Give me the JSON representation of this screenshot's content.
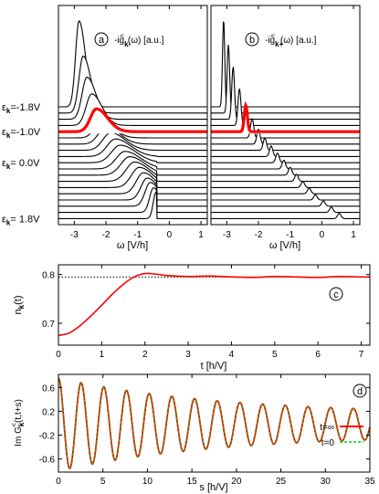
{
  "chart_data": [
    {
      "panel": "a",
      "type": "line",
      "subtitle": "-ig",
      "subtitle_sup": "<",
      "subtitle_sub": "k-",
      "subtitle_suffix": "(ω) [a.u.]",
      "xlabel": "ω [V/h]",
      "xlim": [
        -3.5,
        1.2
      ],
      "xticks": [
        -3,
        -2,
        -1,
        0,
        1
      ],
      "ylabels": [
        {
          "eps": "ε",
          "sub": "k",
          "text": "=-1.8V",
          "curve_index": 0
        },
        {
          "eps": "ε",
          "sub": "k",
          "text": "=-1.0V",
          "curve_index": 4
        },
        {
          "eps": "ε",
          "sub": "k",
          "text": "= 0.0V",
          "curve_index": 9
        },
        {
          "eps": "ε",
          "sub": "k",
          "text": "= 1.8V",
          "curve_index": 18
        }
      ],
      "highlight_index": 4,
      "highlight_color": "#ff0000",
      "edge": -0.4,
      "curves": [
        {
          "eps": -1.8,
          "peak": -2.85,
          "height": 0.98,
          "width": 0.2
        },
        {
          "eps": -1.6,
          "peak": -2.72,
          "height": 0.65,
          "width": 0.24
        },
        {
          "eps": -1.4,
          "peak": -2.6,
          "height": 0.48,
          "width": 0.28
        },
        {
          "eps": -1.2,
          "peak": -2.45,
          "height": 0.36,
          "width": 0.32
        },
        {
          "eps": -1.0,
          "peak": -2.3,
          "height": 0.26,
          "width": 0.35
        },
        {
          "eps": -0.8,
          "peak": -2.15,
          "height": 0.2,
          "width": 0.38
        },
        {
          "eps": -0.6,
          "peak": -2.0,
          "height": 0.2,
          "width": 0.42
        },
        {
          "eps": -0.4,
          "peak": -1.85,
          "height": 0.2,
          "width": 0.45
        },
        {
          "eps": -0.2,
          "peak": -1.7,
          "height": 0.2,
          "width": 0.48
        },
        {
          "eps": 0.0,
          "peak": -1.55,
          "height": 0.2,
          "width": 0.5
        },
        {
          "eps": 0.2,
          "peak": -1.4,
          "height": 0.2,
          "width": 0.5
        },
        {
          "eps": 0.4,
          "peak": -1.25,
          "height": 0.21,
          "width": 0.5
        },
        {
          "eps": 0.6,
          "peak": -1.1,
          "height": 0.22,
          "width": 0.48
        },
        {
          "eps": 0.8,
          "peak": -0.95,
          "height": 0.23,
          "width": 0.45
        },
        {
          "eps": 1.0,
          "peak": -0.82,
          "height": 0.24,
          "width": 0.4
        },
        {
          "eps": 1.2,
          "peak": -0.7,
          "height": 0.25,
          "width": 0.35
        },
        {
          "eps": 1.4,
          "peak": -0.6,
          "height": 0.27,
          "width": 0.3
        },
        {
          "eps": 1.6,
          "peak": -0.5,
          "height": 0.28,
          "width": 0.22
        },
        {
          "eps": 1.8,
          "peak": -0.42,
          "height": 0.3,
          "width": 0.16
        }
      ]
    },
    {
      "panel": "b",
      "type": "line",
      "subtitle": "-ig",
      "subtitle_sup": "<",
      "subtitle_sub": "k+",
      "subtitle_suffix": "(ω) [a.u.]",
      "xlabel": "ω [V/h]",
      "xlim": [
        -3.5,
        1.2
      ],
      "xticks": [
        -3,
        -2,
        -1,
        0,
        1
      ],
      "highlight_index": 4,
      "highlight_color": "#ff0000",
      "curves": [
        {
          "eps": -1.8,
          "peak": -3.1,
          "height": 1.0
        },
        {
          "eps": -1.6,
          "peak": -2.95,
          "height": 0.78
        },
        {
          "eps": -1.4,
          "peak": -2.8,
          "height": 0.6
        },
        {
          "eps": -1.2,
          "peak": -2.6,
          "height": 0.42
        },
        {
          "eps": -1.0,
          "peak": -2.4,
          "height": 0.3
        },
        {
          "eps": -0.8,
          "peak": -2.2,
          "height": 0.22
        },
        {
          "eps": -0.6,
          "peak": -2.0,
          "height": 0.17
        },
        {
          "eps": -0.4,
          "peak": -1.8,
          "height": 0.14
        },
        {
          "eps": -0.2,
          "peak": -1.6,
          "height": 0.12
        },
        {
          "eps": 0.0,
          "peak": -1.4,
          "height": 0.11
        },
        {
          "eps": 0.2,
          "peak": -1.2,
          "height": 0.1
        },
        {
          "eps": 0.4,
          "peak": -1.0,
          "height": 0.09
        },
        {
          "eps": 0.6,
          "peak": -0.8,
          "height": 0.08
        },
        {
          "eps": 0.8,
          "peak": -0.6,
          "height": 0.07
        },
        {
          "eps": 1.0,
          "peak": -0.4,
          "height": 0.065
        },
        {
          "eps": 1.2,
          "peak": -0.2,
          "height": 0.06
        },
        {
          "eps": 1.4,
          "peak": 0.05,
          "height": 0.06
        },
        {
          "eps": 1.6,
          "peak": 0.3,
          "height": 0.06
        },
        {
          "eps": 1.8,
          "peak": 0.55,
          "height": 0.06
        }
      ]
    },
    {
      "panel": "c",
      "type": "line",
      "ylabel": "n",
      "ylabel_sub": "k",
      "ylabel_suffix": "(t)",
      "xlabel": "t [h/V]",
      "xlim": [
        0,
        7.2
      ],
      "ylim": [
        0.655,
        0.82
      ],
      "xticks": [
        0,
        1,
        2,
        3,
        4,
        5,
        6,
        7
      ],
      "yticks": [
        0.7,
        0.8
      ],
      "dotted_reference": 0.795,
      "series": [
        {
          "color": "#ff0000",
          "x": [
            0,
            0.25,
            0.5,
            0.75,
            1.0,
            1.25,
            1.5,
            1.75,
            2.0,
            2.25,
            2.5,
            3.0,
            3.5,
            4.0,
            4.5,
            5.0,
            5.5,
            6.0,
            6.5,
            7.0,
            7.2
          ],
          "y": [
            0.675,
            0.68,
            0.695,
            0.715,
            0.737,
            0.76,
            0.78,
            0.795,
            0.802,
            0.801,
            0.798,
            0.796,
            0.797,
            0.795,
            0.794,
            0.796,
            0.795,
            0.794,
            0.796,
            0.795,
            0.795
          ]
        }
      ]
    },
    {
      "panel": "d",
      "type": "line",
      "ylabel": "Im G",
      "ylabel_sup": "<",
      "ylabel_sub": "k",
      "ylabel_suffix": "(t,t+s)",
      "xlabel": "s [h/V]",
      "xlim": [
        0,
        35
      ],
      "ylim": [
        -0.82,
        0.82
      ],
      "xticks": [
        0,
        5,
        10,
        15,
        20,
        25,
        30,
        35
      ],
      "yticks": [
        -0.6,
        -0.2,
        0.2,
        0.6
      ],
      "oscillation": {
        "amplitude": 0.78,
        "period": 2.55,
        "decay": 0.055,
        "floor": 0.17,
        "offset": -0.02
      },
      "series": [
        {
          "name": "t=∞",
          "color": "#ff0000"
        },
        {
          "name": "t=0",
          "color": "#00cc00"
        }
      ]
    }
  ]
}
